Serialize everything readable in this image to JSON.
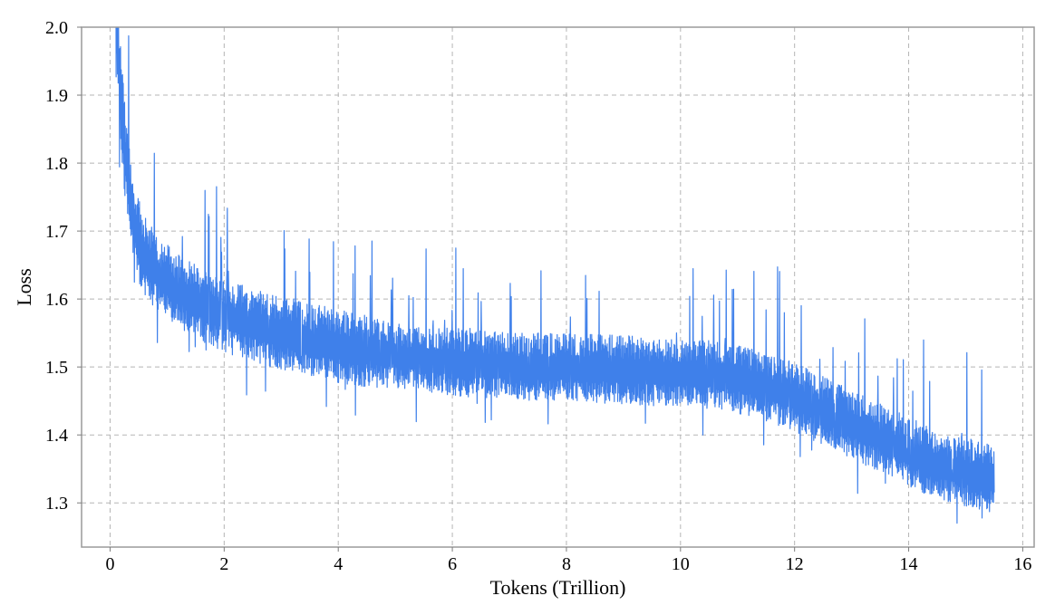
{
  "chart_data": {
    "type": "line",
    "title": "",
    "xlabel": "Tokens (Trillion)",
    "ylabel": "Loss",
    "xlim": [
      -0.5,
      16.2
    ],
    "ylim": [
      1.235,
      2.0
    ],
    "x_ticks": [
      0,
      2,
      4,
      6,
      8,
      10,
      12,
      14,
      16
    ],
    "y_ticks": [
      1.3,
      1.4,
      1.5,
      1.6,
      1.7,
      1.8,
      1.9,
      2.0
    ],
    "x_tick_labels": [
      "0",
      "2",
      "4",
      "6",
      "8",
      "10",
      "12",
      "14",
      "16"
    ],
    "y_tick_labels": [
      "1.3",
      "1.4",
      "1.5",
      "1.6",
      "1.7",
      "1.8",
      "1.9",
      "2.0"
    ],
    "grid": true,
    "legend": "none",
    "series_color": "#3f80ea",
    "series": [
      {
        "x": [
          0.1,
          0.15,
          0.2,
          0.25,
          0.3,
          0.35,
          0.4,
          0.5,
          0.6,
          0.7,
          0.8,
          1.0,
          1.2,
          1.5,
          2.0,
          2.5,
          3.0,
          3.5,
          4.0,
          4.5,
          5.0,
          5.5,
          6.0,
          6.5,
          7.0,
          7.5,
          8.0,
          8.5,
          9.0,
          9.5,
          10.0,
          10.5,
          11.0,
          11.5,
          12.0,
          12.5,
          13.0,
          13.5,
          14.0,
          14.5,
          15.0,
          15.5
        ],
        "y": [
          2.0,
          1.95,
          1.88,
          1.82,
          1.78,
          1.74,
          1.71,
          1.68,
          1.66,
          1.645,
          1.635,
          1.62,
          1.605,
          1.59,
          1.57,
          1.555,
          1.545,
          1.535,
          1.525,
          1.518,
          1.512,
          1.507,
          1.502,
          1.5,
          1.497,
          1.495,
          1.493,
          1.492,
          1.49,
          1.488,
          1.486,
          1.483,
          1.477,
          1.465,
          1.45,
          1.43,
          1.41,
          1.39,
          1.37,
          1.35,
          1.34,
          1.33
        ],
        "noise_band": [
          0.12,
          0.12,
          0.12,
          0.11,
          0.1,
          0.1,
          0.1,
          0.09,
          0.09,
          0.085,
          0.085,
          0.08,
          0.08,
          0.08,
          0.08,
          0.08,
          0.08,
          0.08,
          0.08,
          0.08,
          0.075,
          0.075,
          0.075,
          0.075,
          0.075,
          0.075,
          0.075,
          0.075,
          0.075,
          0.075,
          0.075,
          0.075,
          0.075,
          0.075,
          0.075,
          0.075,
          0.075,
          0.075,
          0.075,
          0.075,
          0.075,
          0.075
        ]
      }
    ]
  }
}
